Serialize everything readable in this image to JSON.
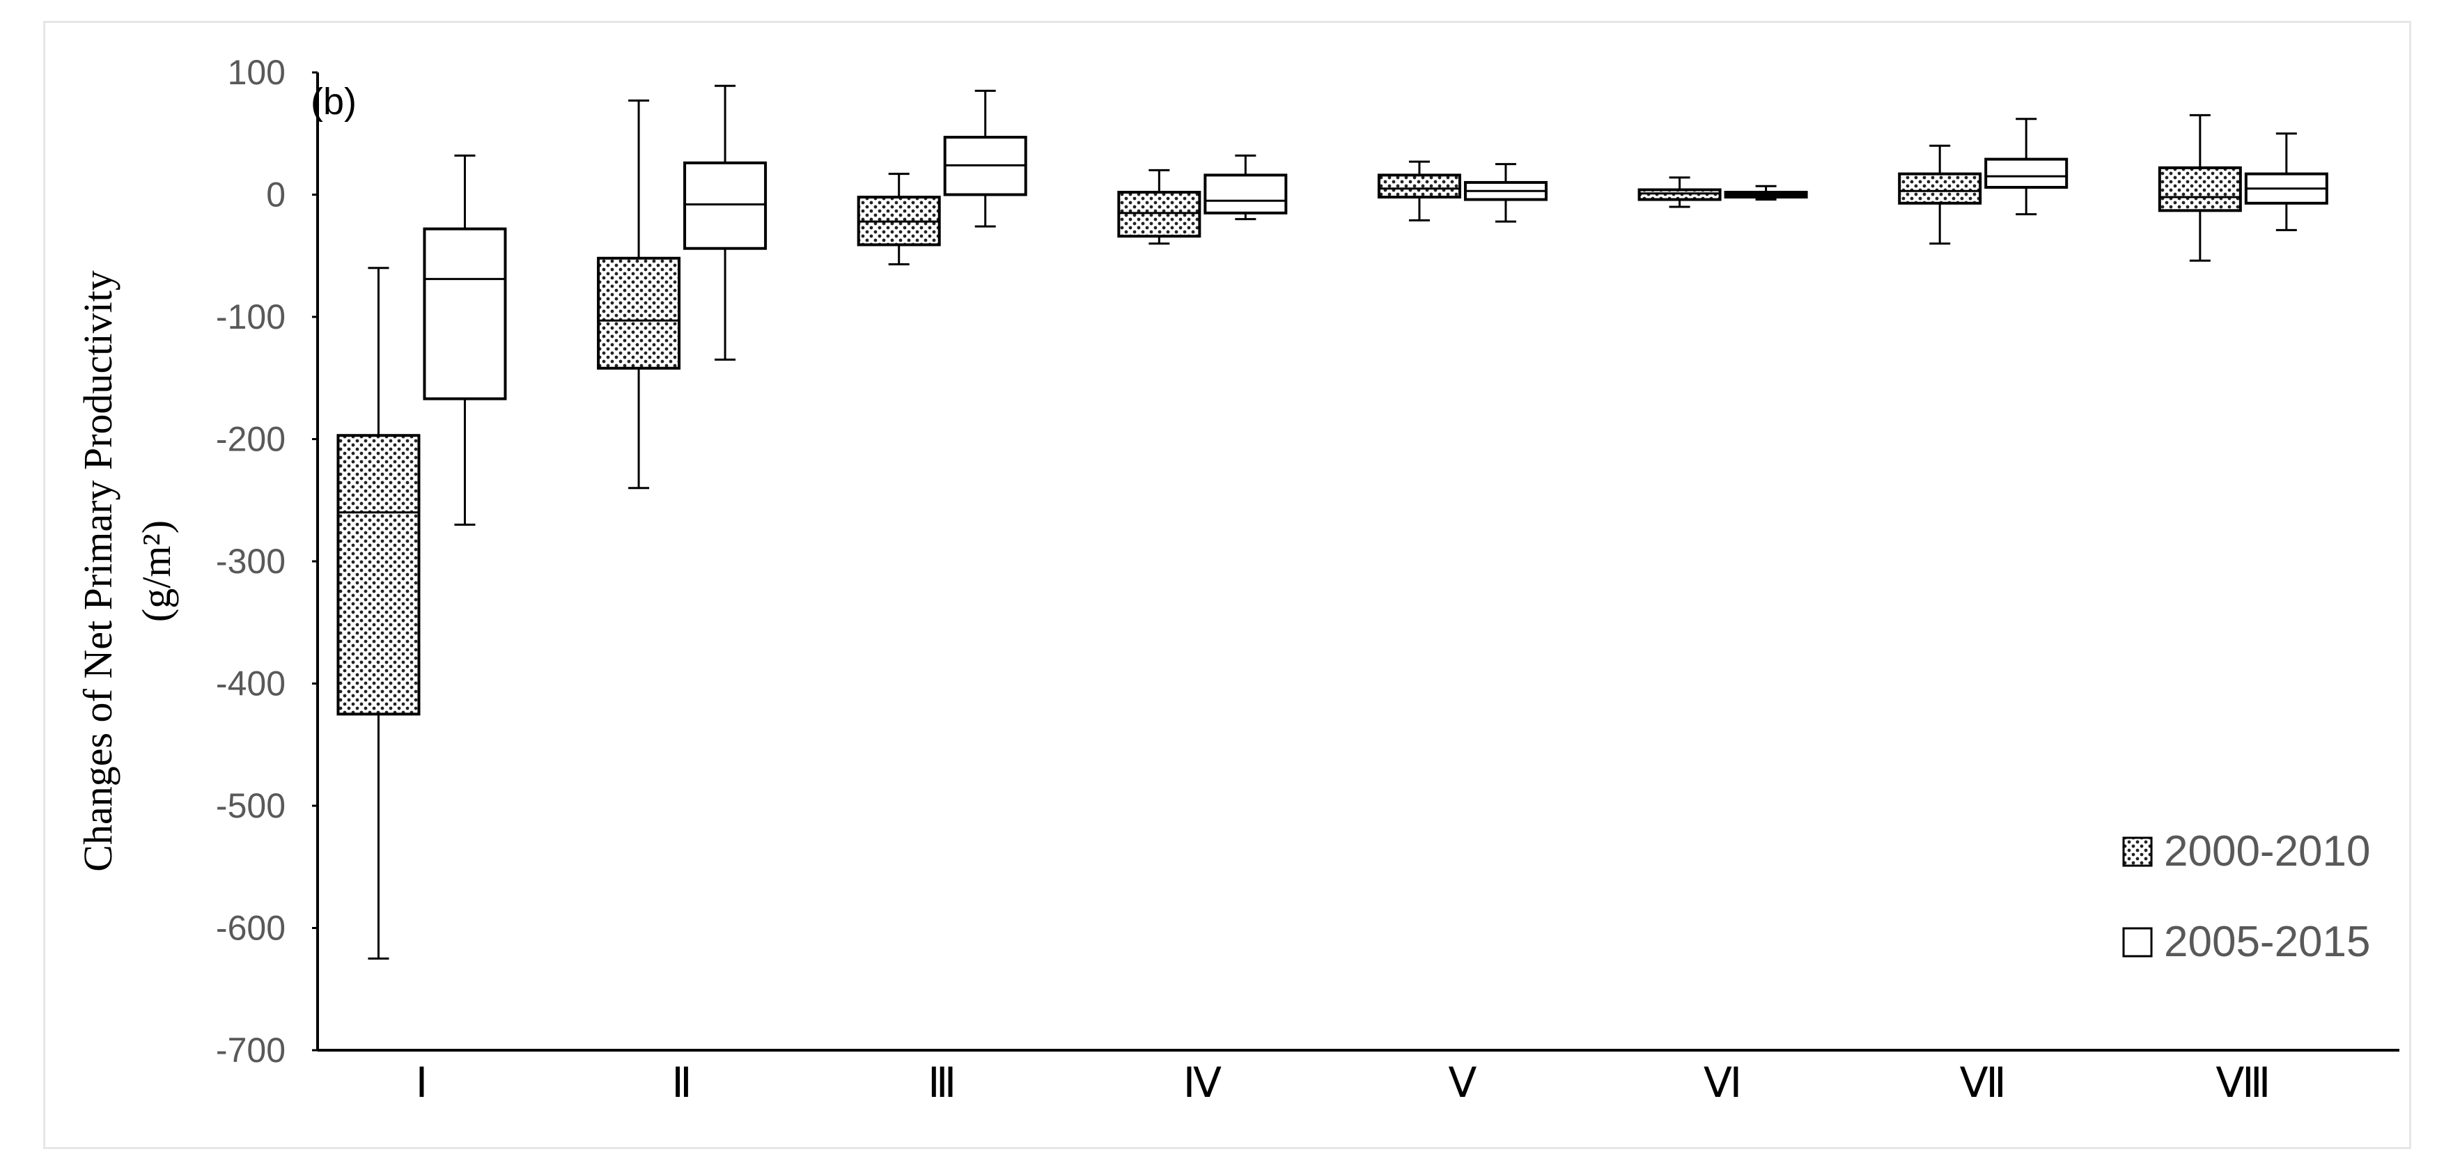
{
  "chart_data": {
    "type": "box",
    "panel_label": "(b)",
    "ylabel_line1": "Changes of Net Primary Productivity",
    "ylabel_line2": "(g/m²)",
    "xlabel": "",
    "ylim": [
      -700,
      100
    ],
    "yticks": [
      "100",
      "0",
      "-100",
      "-200",
      "-300",
      "-400",
      "-500",
      "-600",
      "-700"
    ],
    "ytick_values": [
      100,
      0,
      -100,
      -200,
      -300,
      -400,
      -500,
      -600,
      -700
    ],
    "categories": [
      "Ⅰ",
      "Ⅱ",
      "Ⅲ",
      "Ⅳ",
      "Ⅴ",
      "Ⅵ",
      "Ⅶ",
      "Ⅷ"
    ],
    "grid": false,
    "legend_position": "bottom-right",
    "series": [
      {
        "name": "2000-2010",
        "fill": "dotted",
        "boxes": [
          {
            "min": -625,
            "q1": -425,
            "median": -260,
            "q3": -197,
            "max": -60
          },
          {
            "min": -240,
            "q1": -142,
            "median": -103,
            "q3": -52,
            "max": 77
          },
          {
            "min": -57,
            "q1": -41,
            "median": -22,
            "q3": -2,
            "max": 17
          },
          {
            "min": -40,
            "q1": -34,
            "median": -15,
            "q3": 2,
            "max": 20
          },
          {
            "min": -21,
            "q1": -2,
            "median": 5,
            "q3": 16,
            "max": 27
          },
          {
            "min": -10,
            "q1": -4,
            "median": 1,
            "q3": 4,
            "max": 14
          },
          {
            "min": -40,
            "q1": -7,
            "median": 3,
            "q3": 17,
            "max": 40
          },
          {
            "min": -54,
            "q1": -13,
            "median": -2,
            "q3": 22,
            "max": 65
          }
        ]
      },
      {
        "name": "2005-2015",
        "fill": "none",
        "boxes": [
          {
            "min": -270,
            "q1": -167,
            "median": -69,
            "q3": -28,
            "max": 32
          },
          {
            "min": -135,
            "q1": -44,
            "median": -8,
            "q3": 26,
            "max": 89
          },
          {
            "min": -26,
            "q1": 0,
            "median": 24,
            "q3": 47,
            "max": 85
          },
          {
            "min": -20,
            "q1": -15,
            "median": -5,
            "q3": 16,
            "max": 32
          },
          {
            "min": -22,
            "q1": -4,
            "median": 3,
            "q3": 10,
            "max": 25
          },
          {
            "min": -4,
            "q1": -2,
            "median": 0,
            "q3": 2,
            "max": 7
          },
          {
            "min": -16,
            "q1": 6,
            "median": 15,
            "q3": 29,
            "max": 62
          },
          {
            "min": -29,
            "q1": -7,
            "median": 5,
            "q3": 17,
            "max": 50
          }
        ]
      }
    ]
  }
}
